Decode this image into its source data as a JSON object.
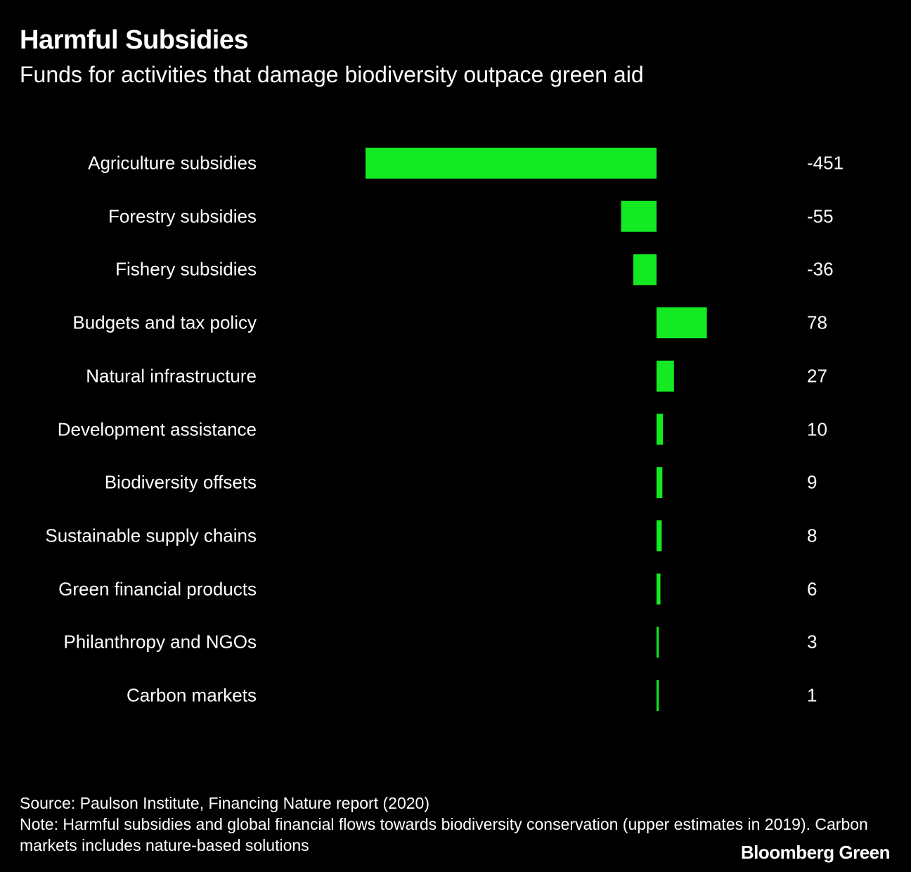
{
  "chart_data": {
    "type": "bar",
    "orientation": "horizontal",
    "title": "Harmful Subsidies",
    "subtitle": "Funds for activities that damage biodiversity outpace green aid",
    "categories": [
      "Agriculture subsidies",
      "Forestry subsidies",
      "Fishery subsidies",
      "Budgets and tax policy",
      "Natural infrastructure",
      "Development assistance",
      "Biodiversity offsets",
      "Sustainable supply chains",
      "Green financial products",
      "Philanthropy and NGOs",
      "Carbon markets"
    ],
    "values": [
      -451,
      -55,
      -36,
      78,
      27,
      10,
      9,
      8,
      6,
      3,
      1
    ],
    "value_labels": [
      "-451",
      "-55",
      "-36",
      "78",
      "27",
      "10",
      "9",
      "8",
      "6",
      "3",
      "1"
    ],
    "xlim": [
      -451,
      78
    ],
    "grid": false,
    "bar_color": "#13ea22",
    "background": "#000000"
  },
  "footer": {
    "source": "Source: Paulson Institute, Financing Nature report (2020)",
    "note": "Note: Harmful subsidies and global financial flows towards biodiversity conservation (upper estimates in 2019). Carbon markets includes nature-based solutions"
  },
  "logo": "Bloomberg Green"
}
